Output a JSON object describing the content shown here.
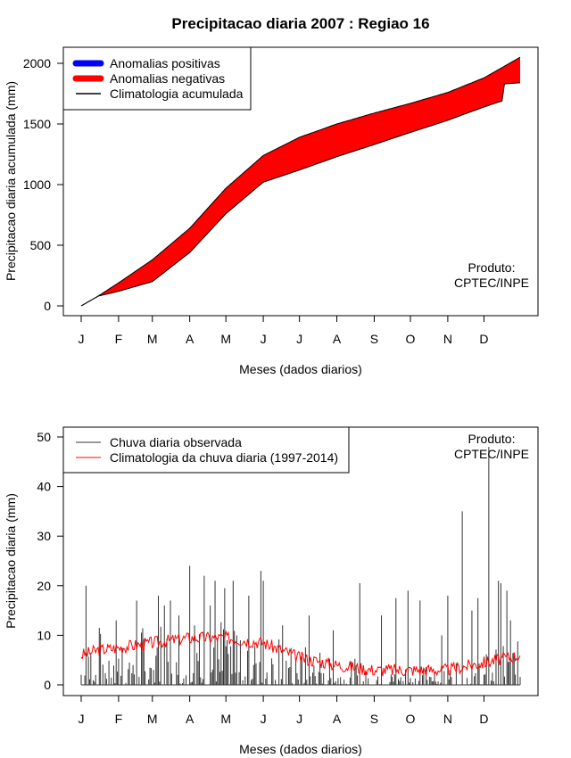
{
  "title": "Precipitacao diaria 2007 : Regiao 16",
  "colors": {
    "positive": "#0000ff",
    "negative": "#ff0000",
    "climatology_line": "#000000",
    "observed": "#333333",
    "daily_climatology": "#ff0000"
  },
  "chart_data": [
    {
      "type": "area",
      "ylabel": "Precipitacao diaria acumulada (mm)",
      "xlabel": "Meses (dados diarios)",
      "ylim": [
        0,
        2100
      ],
      "yticks": [
        0,
        500,
        1000,
        1500,
        2000
      ],
      "month_labels": [
        "J",
        "F",
        "M",
        "A",
        "M",
        "J",
        "J",
        "A",
        "S",
        "O",
        "N",
        "D"
      ],
      "month_start_days": [
        1,
        32,
        60,
        91,
        121,
        152,
        182,
        213,
        244,
        274,
        305,
        335
      ],
      "legend": [
        "Anomalias positivas",
        "Anomalias negativas",
        "Climatologia acumulada"
      ],
      "annotation": [
        "Produto:",
        "CPTEC/INPE"
      ],
      "climatology_cumulative": {
        "day": [
          1,
          15,
          32,
          60,
          91,
          121,
          152,
          182,
          213,
          244,
          274,
          305,
          335,
          365
        ],
        "value": [
          0,
          80,
          190,
          380,
          640,
          970,
          1240,
          1390,
          1500,
          1590,
          1670,
          1760,
          1880,
          2050
        ]
      },
      "observed_cumulative": {
        "day": [
          1,
          15,
          32,
          60,
          91,
          121,
          152,
          182,
          213,
          244,
          274,
          305,
          335,
          350,
          352,
          365
        ],
        "value": [
          0,
          80,
          120,
          200,
          440,
          760,
          1020,
          1120,
          1230,
          1330,
          1430,
          1530,
          1640,
          1690,
          1830,
          1840
        ]
      }
    },
    {
      "type": "bar",
      "ylabel": "Precipitacao diaria (mm)",
      "xlabel": "Meses (dados diarios)",
      "ylim": [
        0,
        50
      ],
      "yticks": [
        0,
        10,
        20,
        30,
        40,
        50
      ],
      "month_labels": [
        "J",
        "F",
        "M",
        "A",
        "M",
        "J",
        "J",
        "A",
        "S",
        "O",
        "N",
        "D"
      ],
      "month_start_days": [
        1,
        32,
        60,
        91,
        121,
        152,
        182,
        213,
        244,
        274,
        305,
        335
      ],
      "legend": [
        "Chuva diaria observada",
        "Climatologia da chuva diaria (1997-2014)"
      ],
      "annotation": [
        "Produto:",
        "CPTEC/INPE"
      ],
      "observed_peaks": {
        "day": [
          5,
          16,
          30,
          47,
          65,
          70,
          75,
          82,
          91,
          95,
          103,
          108,
          112,
          120,
          127,
          140,
          150,
          152,
          168,
          190,
          210,
          232,
          250,
          262,
          272,
          282,
          300,
          305,
          317,
          325,
          330,
          339,
          347,
          349,
          354,
          357
        ],
        "value": [
          20,
          11.5,
          13,
          17,
          18,
          16,
          17,
          14,
          24,
          12,
          22,
          16,
          21,
          19.5,
          21,
          18,
          23,
          21,
          12,
          14,
          11,
          20.5,
          14,
          17.5,
          19,
          17,
          10,
          18,
          35,
          15,
          17.5,
          48,
          21,
          20.5,
          19,
          13
        ]
      },
      "daily_climatology": {
        "day": [
          1,
          15,
          32,
          60,
          91,
          121,
          152,
          182,
          213,
          244,
          274,
          305,
          335,
          365
        ],
        "value": [
          6,
          7,
          7.5,
          8.5,
          9.5,
          9.5,
          8.5,
          5.5,
          4,
          3,
          3,
          3,
          4.5,
          6
        ]
      }
    }
  ]
}
